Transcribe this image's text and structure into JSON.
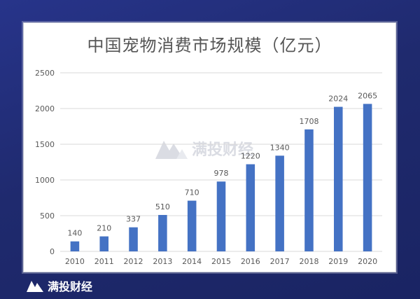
{
  "brand": {
    "name": "满投财经",
    "logo_icon": "mountain-logo-icon"
  },
  "colors": {
    "background": "#1f2a6e",
    "bar": "#4472c4",
    "grid": "#d9d9d9",
    "text": "#595959"
  },
  "chart_data": {
    "type": "bar",
    "title": "中国宠物消费市场规模（亿元）",
    "categories": [
      "2010",
      "2011",
      "2012",
      "2013",
      "2014",
      "2015",
      "2016",
      "2017",
      "2018",
      "2019",
      "2020"
    ],
    "values": [
      140,
      210,
      337,
      510,
      710,
      978,
      1220,
      1340,
      1708,
      2024,
      2065
    ],
    "ylim": [
      0,
      2500
    ],
    "yticks": [
      0,
      500,
      1000,
      1500,
      2000,
      2500
    ],
    "grid": true,
    "data_labels": true
  }
}
